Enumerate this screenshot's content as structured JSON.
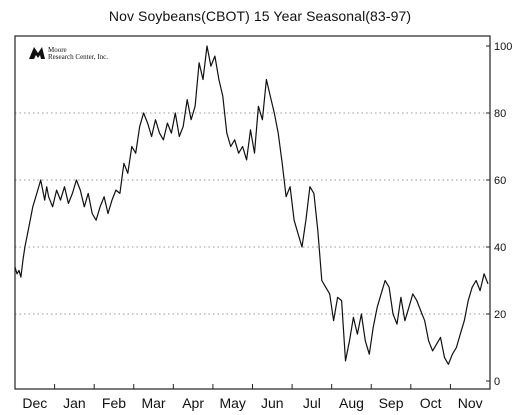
{
  "logo": {
    "line1": "Moore",
    "line2": "Research Center, Inc."
  },
  "chart_data": {
    "type": "line",
    "title": "Nov Soybeans(CBOT) 15 Year Seasonal(83-97)",
    "xlabel": "",
    "ylabel": "",
    "x_tick_labels": [
      "Dec",
      "Jan",
      "Feb",
      "Mar",
      "Apr",
      "May",
      "Jun",
      "Jul",
      "Aug",
      "Sep",
      "Oct",
      "Nov"
    ],
    "xlim": [
      0,
      12
    ],
    "ylim": [
      0,
      100
    ],
    "y_ticks": [
      0,
      20,
      40,
      60,
      80,
      100
    ],
    "y_axis_side": "right",
    "grid": "dotted-horizontal",
    "series": [
      {
        "x": [
          0.0,
          0.05,
          0.1,
          0.15,
          0.2,
          0.25,
          0.35,
          0.45,
          0.55,
          0.65,
          0.75,
          0.8,
          0.85,
          0.95,
          1.05,
          1.15,
          1.25,
          1.35,
          1.45,
          1.55,
          1.65,
          1.75,
          1.85,
          1.95,
          2.05,
          2.15,
          2.25,
          2.35,
          2.45,
          2.55,
          2.65,
          2.75,
          2.85,
          2.95,
          3.05,
          3.15,
          3.25,
          3.35,
          3.45,
          3.55,
          3.65,
          3.75,
          3.85,
          3.95,
          4.05,
          4.15,
          4.25,
          4.35,
          4.45,
          4.55,
          4.65,
          4.75,
          4.85,
          4.95,
          5.05,
          5.15,
          5.25,
          5.35,
          5.45,
          5.55,
          5.65,
          5.75,
          5.85,
          5.95,
          6.05,
          6.15,
          6.25,
          6.35,
          6.45,
          6.55,
          6.65,
          6.75,
          6.85,
          6.95,
          7.05,
          7.15,
          7.25,
          7.35,
          7.45,
          7.55,
          7.65,
          7.75,
          7.85,
          7.95,
          8.05,
          8.15,
          8.25,
          8.35,
          8.45,
          8.55,
          8.65,
          8.75,
          8.85,
          8.95,
          9.05,
          9.15,
          9.25,
          9.35,
          9.45,
          9.55,
          9.65,
          9.75,
          9.85,
          9.95,
          10.05,
          10.15,
          10.25,
          10.35,
          10.45,
          10.55,
          10.65,
          10.75,
          10.85,
          10.95,
          11.05,
          11.15,
          11.25,
          11.35,
          11.45,
          11.55,
          11.65,
          11.75,
          11.85,
          11.95
        ],
        "y": [
          34,
          32,
          33,
          31,
          36,
          40,
          46,
          52,
          56,
          60,
          54,
          58,
          55,
          52,
          57,
          54,
          58,
          53,
          56,
          60,
          57,
          52,
          56,
          50,
          48,
          52,
          55,
          50,
          54,
          57,
          56,
          65,
          62,
          70,
          68,
          76,
          80,
          77,
          73,
          78,
          74,
          72,
          77,
          74,
          80,
          73,
          76,
          84,
          78,
          82,
          95,
          90,
          100,
          94,
          97,
          90,
          85,
          74,
          70,
          72,
          68,
          70,
          66,
          75,
          68,
          82,
          78,
          90,
          85,
          80,
          74,
          65,
          55,
          58,
          48,
          44,
          40,
          48,
          58,
          56,
          45,
          30,
          28,
          26,
          18,
          25,
          24,
          6,
          12,
          19,
          14,
          20,
          12,
          8,
          16,
          22,
          26,
          30,
          28,
          20,
          17,
          25,
          18,
          22,
          26,
          24,
          21,
          18,
          12,
          9,
          11,
          13,
          7,
          5,
          8,
          10,
          14,
          18,
          24,
          28,
          30,
          27,
          32,
          29
        ]
      }
    ]
  }
}
